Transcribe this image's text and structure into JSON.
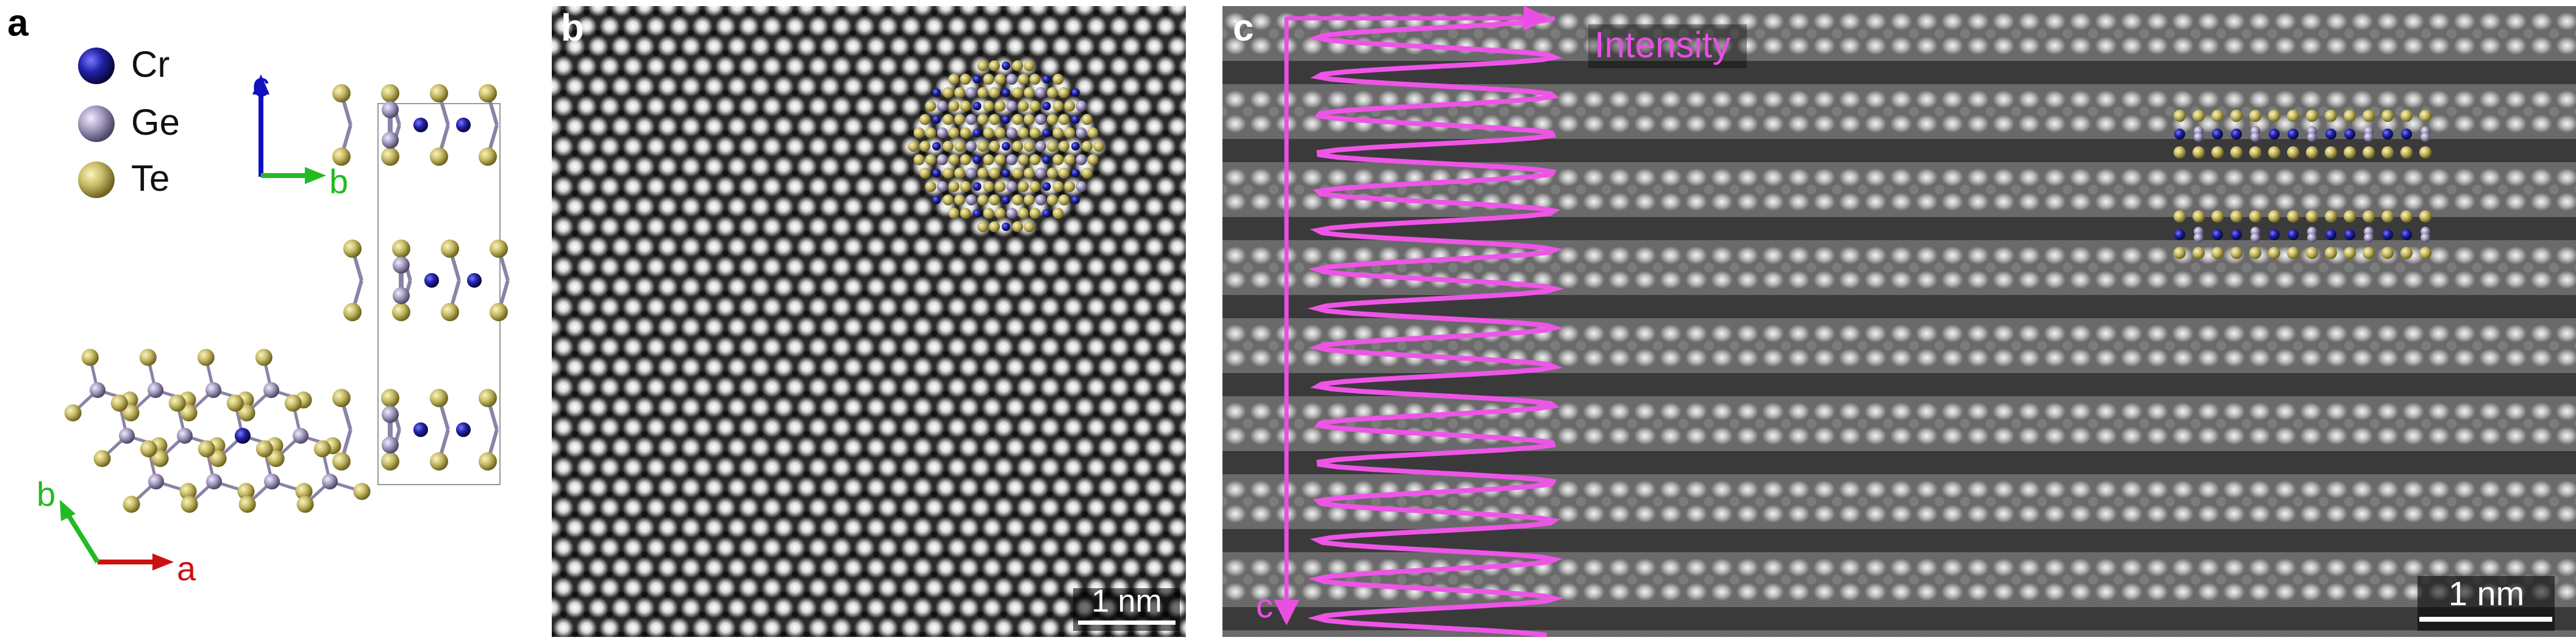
{
  "panel_a": {
    "label": "a",
    "legend": [
      "Cr",
      "Ge",
      "Te"
    ],
    "side_axes": {
      "vertical": "c",
      "horizontal": "b"
    },
    "top_axes": {
      "horizontal": "a",
      "diagonal": "b"
    }
  },
  "panel_b": {
    "label": "b",
    "scale_bar": "1 nm"
  },
  "panel_c": {
    "label": "c",
    "profile_label": "Intensity",
    "axis_label": "c",
    "scale_bar": "1 nm"
  }
}
